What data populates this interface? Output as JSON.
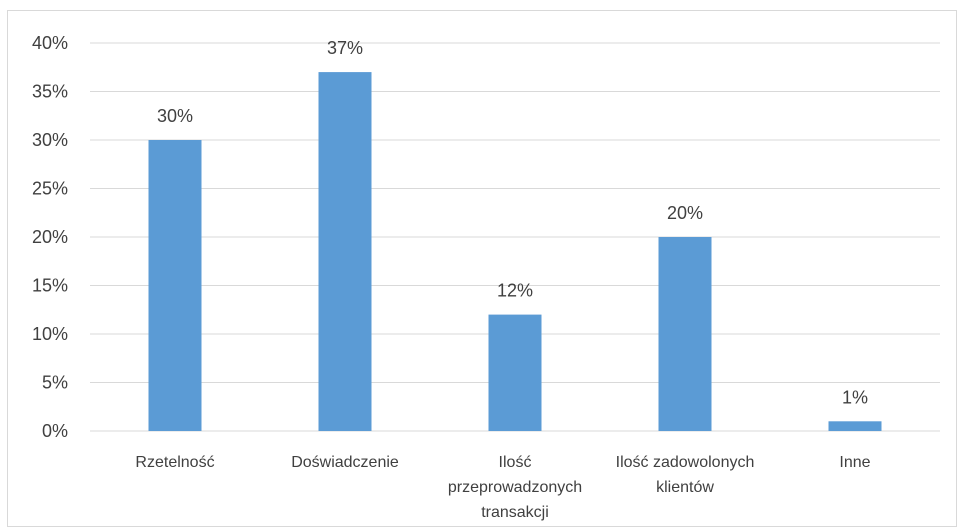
{
  "chart_data": {
    "type": "bar",
    "categories": [
      [
        "Rzetelność"
      ],
      [
        "Doświadczenie"
      ],
      [
        "Ilość",
        "przeprowadzonych",
        "transakcji"
      ],
      [
        "Ilość zadowolonych",
        "klientów"
      ],
      [
        "Inne"
      ]
    ],
    "values": [
      30,
      37,
      12,
      20,
      1
    ],
    "data_labels": [
      "30%",
      "37%",
      "12%",
      "20%",
      "1%"
    ],
    "y_ticks": [
      "0%",
      "5%",
      "10%",
      "15%",
      "20%",
      "25%",
      "30%",
      "35%",
      "40%"
    ],
    "ylim": [
      0,
      40
    ],
    "grid": true,
    "bar_color": "#5b9bd5",
    "grid_color": "#d9d9d9"
  }
}
